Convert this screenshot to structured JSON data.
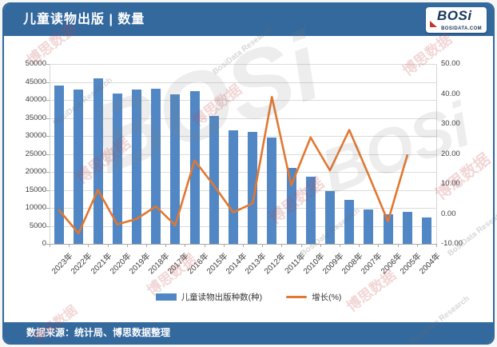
{
  "header": {
    "title": "儿童读物出版 | 数量",
    "bar_color": "#34699E",
    "logo": {
      "brand": "BOSi",
      "domain": "BOSIDATA.COM",
      "accent_color": "#C0392B",
      "text_color": "#16355C"
    }
  },
  "chart_data": {
    "type": "bar",
    "title": "儿童读物出版 | 数量",
    "categories": [
      "2023年",
      "2022年",
      "2021年",
      "2020年",
      "2019年",
      "2018年",
      "2017年",
      "2016年",
      "2015年",
      "2014年",
      "2013年",
      "2012年",
      "2011年",
      "2010年",
      "2009年",
      "2008年",
      "2007年",
      "2006年",
      "2005年",
      "2004年"
    ],
    "series": [
      {
        "name": "儿童读物出版种数(种)",
        "type": "bar",
        "y_axis": "left",
        "color": "#5187C4",
        "values": [
          44000,
          43000,
          46000,
          41800,
          42800,
          43200,
          41500,
          42500,
          35600,
          31500,
          31100,
          29600,
          21100,
          18700,
          14600,
          12300,
          9500,
          8200,
          8800,
          7300
        ]
      },
      {
        "name": "增长(%)",
        "type": "line",
        "y_axis": "right",
        "color": "#E27730",
        "values": [
          1.2,
          -6.5,
          8.0,
          -3.5,
          -1.7,
          2.5,
          -3.8,
          17.8,
          9.5,
          0.5,
          3.5,
          39.0,
          9.5,
          25.5,
          14.5,
          28.0,
          13.0,
          -2.5,
          19.5,
          null
        ]
      }
    ],
    "left_axis": {
      "min": 0,
      "max": 50000,
      "step": 5000,
      "ticks": [
        "50000",
        "45000",
        "40000",
        "35000",
        "30000",
        "25000",
        "20000",
        "15000",
        "10000",
        "5000",
        "0"
      ]
    },
    "right_axis": {
      "min": -10,
      "max": 50,
      "step": 10,
      "ticks": [
        "50.00",
        "40.00",
        "30.00",
        "20.00",
        "10.00",
        "0.00",
        "-10.00"
      ]
    },
    "grid": true,
    "legend_position": "bottom"
  },
  "footer": {
    "source": "数据来源：统计局、博思数据整理"
  },
  "watermark": {
    "texts": [
      "博思数据",
      "BosiData Research",
      "BOSi"
    ],
    "red_color": "rgba(195,70,70,0.22)",
    "gray_color": "rgba(110,110,110,0.28)",
    "big_color": "rgba(125,125,125,0.14)"
  }
}
